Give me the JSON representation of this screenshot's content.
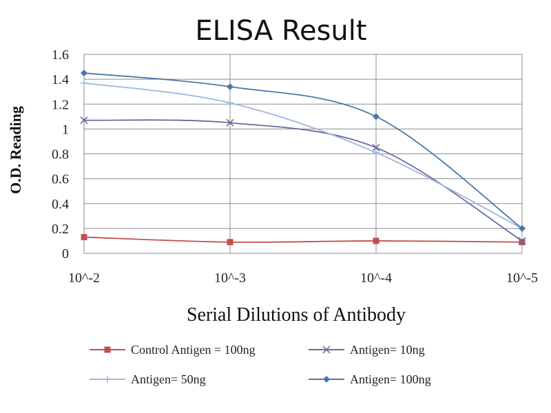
{
  "chart_data": {
    "type": "line",
    "title": "ELISA Result",
    "xlabel": "Serial Dilutions  of Antibody",
    "ylabel": "O.D. Reading",
    "categories": [
      "10^-2",
      "10^-3",
      "10^-4",
      "10^-5"
    ],
    "ylim": [
      0,
      1.6
    ],
    "yticks": [
      "0",
      "0.2",
      "0.4",
      "0.6",
      "0.8",
      "1",
      "1.2",
      "1.4",
      "1.6"
    ],
    "grid": true,
    "legend_position": "bottom",
    "series": [
      {
        "name": "Control Antigen = 100ng",
        "values": [
          0.13,
          0.09,
          0.1,
          0.09
        ],
        "color": "#c0504d",
        "marker": "square"
      },
      {
        "name": "Antigen= 10ng",
        "values": [
          1.07,
          1.05,
          0.85,
          0.1
        ],
        "color": "#6b6aa0",
        "marker": "x"
      },
      {
        "name": "Antigen= 50ng",
        "values": [
          1.37,
          1.21,
          0.81,
          0.2
        ],
        "color": "#9eb7db",
        "marker": "plus"
      },
      {
        "name": "Antigen= 100ng",
        "values": [
          1.45,
          1.34,
          1.1,
          0.2
        ],
        "color": "#4a78a8",
        "marker": "diamond"
      }
    ]
  }
}
